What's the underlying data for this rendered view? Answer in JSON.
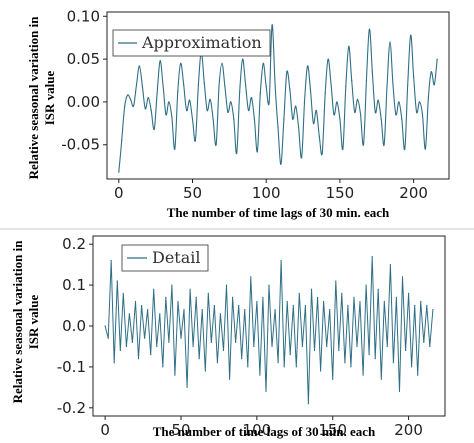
{
  "figure": {
    "line_color": "#2f6f86",
    "divider_color": "#cfd8dc"
  },
  "chart_data": [
    {
      "type": "line",
      "legend": "Approximation",
      "legend_position": "top-left",
      "xlabel": "The number of time lags of 30 min. each",
      "ylabel": "Relative seasonal variation in ISR value",
      "xlim": [
        -8,
        224
      ],
      "ylim": [
        -0.09,
        0.105
      ],
      "xticks": [
        0,
        50,
        100,
        150,
        200
      ],
      "yticks": [
        -0.05,
        0.0,
        0.05,
        0.1
      ],
      "ytick_labels": [
        "-0.05",
        "0.00",
        "0.05",
        "0.10"
      ],
      "grid": false,
      "series": [
        {
          "name": "Approximation",
          "x": [
            0,
            2,
            4,
            6,
            8,
            10,
            12,
            14,
            16,
            18,
            20,
            22,
            24,
            26,
            28,
            30,
            32,
            34,
            36,
            38,
            40,
            42,
            44,
            46,
            48,
            50,
            52,
            54,
            56,
            58,
            60,
            62,
            64,
            66,
            68,
            70,
            72,
            74,
            76,
            78,
            80,
            82,
            84,
            86,
            88,
            90,
            92,
            94,
            96,
            98,
            100,
            102,
            104,
            106,
            108,
            110,
            112,
            114,
            116,
            118,
            120,
            122,
            124,
            126,
            128,
            130,
            132,
            134,
            136,
            138,
            140,
            142,
            144,
            146,
            148,
            150,
            152,
            154,
            156,
            158,
            160,
            162,
            164,
            166,
            168,
            170,
            172,
            174,
            176,
            178,
            180,
            182,
            184,
            186,
            188,
            190,
            192,
            194,
            196,
            198,
            200,
            202,
            204,
            206,
            208,
            210,
            212,
            214,
            216
          ],
          "values": [
            -0.082,
            -0.045,
            -0.005,
            0.008,
            0.003,
            -0.005,
            0.02,
            0.042,
            0.018,
            -0.008,
            0.005,
            -0.01,
            -0.032,
            0.01,
            0.048,
            0.02,
            -0.015,
            0.0,
            -0.018,
            -0.055,
            0.012,
            0.045,
            0.02,
            -0.01,
            0.002,
            -0.02,
            -0.045,
            0.02,
            0.058,
            0.022,
            -0.01,
            0.003,
            -0.02,
            -0.05,
            0.018,
            0.045,
            0.018,
            -0.012,
            0.0,
            -0.02,
            -0.06,
            0.012,
            0.05,
            0.02,
            -0.01,
            0.005,
            -0.02,
            -0.058,
            0.01,
            0.045,
            0.018,
            0.0,
            0.09,
            0.02,
            -0.03,
            -0.073,
            -0.02,
            0.035,
            0.015,
            -0.02,
            -0.005,
            -0.03,
            -0.065,
            0.0,
            0.042,
            0.015,
            -0.025,
            -0.01,
            -0.04,
            -0.06,
            0.01,
            0.05,
            0.02,
            -0.015,
            0.0,
            -0.02,
            -0.055,
            0.018,
            0.065,
            0.025,
            -0.012,
            0.003,
            -0.015,
            -0.05,
            0.025,
            0.085,
            0.035,
            -0.012,
            0.002,
            -0.02,
            -0.05,
            0.02,
            0.07,
            0.02,
            -0.015,
            0.0,
            -0.02,
            -0.055,
            0.02,
            0.078,
            0.03,
            -0.012,
            0.0,
            -0.015,
            -0.055,
            0.005,
            0.035,
            0.02,
            0.05
          ]
        }
      ]
    },
    {
      "type": "line",
      "legend": "Detail",
      "legend_position": "top-left",
      "xlabel": "The number of time lags of 30 min. each",
      "ylabel": "Relative seasonal variation in ISR value",
      "xlim": [
        -8,
        224
      ],
      "ylim": [
        -0.22,
        0.22
      ],
      "xticks": [
        0,
        50,
        100,
        150,
        200
      ],
      "yticks": [
        -0.2,
        -0.1,
        0.0,
        0.1,
        0.2
      ],
      "ytick_labels": [
        "-0.2",
        "-0.1",
        "0.0",
        "0.1",
        "0.2"
      ],
      "grid": false,
      "series": [
        {
          "name": "Detail",
          "x": [
            0,
            2,
            4,
            6,
            8,
            10,
            12,
            14,
            16,
            18,
            20,
            22,
            24,
            26,
            28,
            30,
            32,
            34,
            36,
            38,
            40,
            42,
            44,
            46,
            48,
            50,
            52,
            54,
            56,
            58,
            60,
            62,
            64,
            66,
            68,
            70,
            72,
            74,
            76,
            78,
            80,
            82,
            84,
            86,
            88,
            90,
            92,
            94,
            96,
            98,
            100,
            102,
            104,
            106,
            108,
            110,
            112,
            114,
            116,
            118,
            120,
            122,
            124,
            126,
            128,
            130,
            132,
            134,
            136,
            138,
            140,
            142,
            144,
            146,
            148,
            150,
            152,
            154,
            156,
            158,
            160,
            162,
            164,
            166,
            168,
            170,
            172,
            174,
            176,
            178,
            180,
            182,
            184,
            186,
            188,
            190,
            192,
            194,
            196,
            198,
            200,
            202,
            204,
            206,
            208,
            210,
            212,
            214,
            216
          ],
          "values": [
            0.0,
            -0.03,
            0.16,
            -0.09,
            0.11,
            -0.06,
            0.08,
            -0.05,
            0.03,
            -0.04,
            0.06,
            -0.08,
            0.05,
            -0.03,
            0.04,
            -0.07,
            0.09,
            -0.05,
            0.03,
            -0.1,
            0.07,
            -0.04,
            0.1,
            -0.12,
            0.06,
            -0.03,
            0.04,
            -0.15,
            0.09,
            -0.05,
            0.07,
            -0.08,
            0.04,
            -0.11,
            0.08,
            -0.04,
            0.05,
            -0.09,
            0.03,
            -0.06,
            0.1,
            -0.13,
            0.07,
            -0.04,
            0.05,
            -0.08,
            0.04,
            -0.1,
            0.12,
            -0.05,
            0.06,
            -0.12,
            0.07,
            -0.16,
            0.1,
            -0.05,
            0.04,
            -0.09,
            0.16,
            -0.1,
            0.06,
            -0.07,
            0.05,
            -0.1,
            0.08,
            -0.05,
            0.05,
            -0.19,
            0.09,
            -0.06,
            0.07,
            -0.11,
            0.06,
            -0.05,
            0.04,
            -0.13,
            0.11,
            -0.06,
            0.08,
            -0.09,
            0.05,
            -0.1,
            0.07,
            -0.05,
            0.06,
            -0.12,
            0.1,
            -0.07,
            0.17,
            -0.08,
            0.09,
            -0.13,
            0.06,
            -0.05,
            0.15,
            -0.09,
            0.07,
            -0.16,
            0.12,
            -0.06,
            0.08,
            -0.1,
            0.05,
            -0.12,
            0.06,
            -0.04,
            0.05,
            -0.05,
            0.04
          ]
        }
      ]
    }
  ]
}
